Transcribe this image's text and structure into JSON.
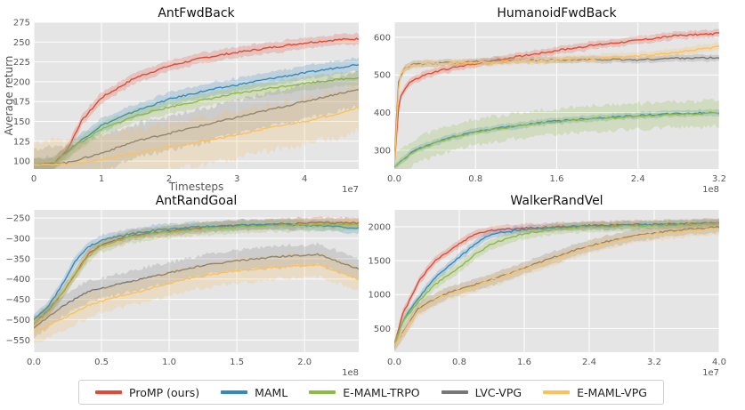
{
  "legend": [
    {
      "name": "ProMP (ours)",
      "color": "#e24a33"
    },
    {
      "name": "MAML",
      "color": "#348abd"
    },
    {
      "name": "E-MAML-TRPO",
      "color": "#8eba42"
    },
    {
      "name": "LVC-VPG",
      "color": "#777777"
    },
    {
      "name": "E-MAML-VPG",
      "color": "#fbc15e"
    }
  ],
  "chart_data": [
    {
      "type": "line",
      "title": "AntFwdBack",
      "xlabel": "Timesteps",
      "ylabel": "Average return",
      "x_multiplier": "1e7",
      "xlim": [
        0,
        4.8
      ],
      "ylim": [
        90,
        275
      ],
      "xticks": [
        0,
        1,
        2,
        3,
        4
      ],
      "xtick_labels": [
        "0",
        "1",
        "2",
        "3",
        "4"
      ],
      "yticks": [
        100,
        125,
        150,
        175,
        200,
        225,
        250,
        275
      ],
      "ytick_labels": [
        "100",
        "125",
        "150",
        "175",
        "200",
        "225",
        "250",
        "275"
      ],
      "series": [
        {
          "name": "ProMP (ours)",
          "color": "#e24a33",
          "x": [
            0,
            0.3,
            0.5,
            0.7,
            1.0,
            1.5,
            2.0,
            2.5,
            3.0,
            3.5,
            4.0,
            4.5,
            4.8
          ],
          "y": [
            95,
            97,
            115,
            150,
            180,
            205,
            220,
            230,
            237,
            243,
            249,
            253,
            254
          ],
          "spread": 8
        },
        {
          "name": "MAML",
          "color": "#348abd",
          "x": [
            0,
            0.3,
            0.6,
            1.0,
            1.5,
            2.0,
            2.5,
            3.0,
            3.5,
            4.0,
            4.5,
            4.8
          ],
          "y": [
            95,
            97,
            120,
            145,
            163,
            178,
            188,
            196,
            204,
            211,
            218,
            222
          ],
          "spread": 10
        },
        {
          "name": "E-MAML-TRPO",
          "color": "#8eba42",
          "x": [
            0,
            0.3,
            0.6,
            1.0,
            1.5,
            2.0,
            2.5,
            3.0,
            3.5,
            4.0,
            4.5,
            4.8
          ],
          "y": [
            95,
            97,
            118,
            140,
            157,
            168,
            177,
            185,
            192,
            198,
            203,
            205
          ],
          "spread": 10
        },
        {
          "name": "LVC-VPG",
          "color": "#777777",
          "x": [
            0,
            0.5,
            1.0,
            1.5,
            2.0,
            2.5,
            3.0,
            3.5,
            4.0,
            4.5,
            4.8
          ],
          "y": [
            95,
            98,
            110,
            125,
            135,
            145,
            155,
            165,
            175,
            185,
            190
          ],
          "spread": 25
        },
        {
          "name": "E-MAML-VPG",
          "color": "#fbc15e",
          "x": [
            0,
            0.5,
            1.0,
            1.5,
            2.0,
            2.5,
            3.0,
            3.5,
            4.0,
            4.5,
            4.8
          ],
          "y": [
            95,
            96,
            102,
            110,
            118,
            125,
            133,
            142,
            150,
            160,
            168
          ],
          "spread": 35
        }
      ]
    },
    {
      "type": "line",
      "title": "HumanoidFwdBack",
      "xlabel": "",
      "ylabel": "",
      "x_multiplier": "1e8",
      "xlim": [
        0,
        3.2
      ],
      "ylim": [
        250,
        640
      ],
      "xticks": [
        0,
        0.8,
        1.6,
        2.4,
        3.2
      ],
      "xtick_labels": [
        "0.0",
        "0.8",
        "1.6",
        "2.4",
        "3.2"
      ],
      "yticks": [
        300,
        400,
        500,
        600
      ],
      "ytick_labels": [
        "300",
        "400",
        "500",
        "600"
      ],
      "series": [
        {
          "name": "ProMP (ours)",
          "color": "#e24a33",
          "x": [
            0,
            0.05,
            0.15,
            0.3,
            0.5,
            0.8,
            1.2,
            1.6,
            2.0,
            2.4,
            2.8,
            3.2
          ],
          "y": [
            260,
            440,
            480,
            500,
            515,
            530,
            548,
            565,
            580,
            592,
            605,
            610
          ],
          "spread": 12
        },
        {
          "name": "MAML",
          "color": "#348abd",
          "x": [
            0,
            0.2,
            0.5,
            0.8,
            1.2,
            1.6,
            2.0,
            2.4,
            2.8,
            3.2
          ],
          "y": [
            255,
            300,
            330,
            350,
            365,
            378,
            386,
            392,
            397,
            400
          ],
          "spread": 10
        },
        {
          "name": "E-MAML-TRPO",
          "color": "#8eba42",
          "x": [
            0,
            0.2,
            0.5,
            0.8,
            1.2,
            1.6,
            2.0,
            2.4,
            2.8,
            3.2
          ],
          "y": [
            255,
            298,
            328,
            348,
            364,
            376,
            384,
            390,
            395,
            398
          ],
          "spread": 40
        },
        {
          "name": "LVC-VPG",
          "color": "#777777",
          "x": [
            0,
            0.04,
            0.1,
            0.2,
            0.5,
            0.8,
            1.2,
            1.6,
            2.0,
            2.4,
            2.8,
            3.2
          ],
          "y": [
            270,
            480,
            520,
            528,
            532,
            535,
            538,
            540,
            541,
            540,
            545,
            545
          ],
          "spread": 10
        },
        {
          "name": "E-MAML-VPG",
          "color": "#fbc15e",
          "x": [
            0,
            0.05,
            0.15,
            0.3,
            0.6,
            1.0,
            1.6,
            2.0,
            2.4,
            2.8,
            3.2
          ],
          "y": [
            260,
            500,
            525,
            530,
            532,
            535,
            540,
            545,
            550,
            560,
            575
          ],
          "spread": 12
        }
      ]
    },
    {
      "type": "line",
      "title": "AntRandGoal",
      "xlabel": "",
      "ylabel": "",
      "x_multiplier": "1e8",
      "xlim": [
        0,
        2.4
      ],
      "ylim": [
        -580,
        -230
      ],
      "xticks": [
        0,
        0.5,
        1.0,
        1.5,
        2.0
      ],
      "xtick_labels": [
        "0.0",
        "0.5",
        "1.0",
        "1.5",
        "2.0"
      ],
      "yticks": [
        -550,
        -500,
        -450,
        -400,
        -350,
        -300,
        -250
      ],
      "ytick_labels": [
        "−550",
        "−500",
        "−450",
        "−400",
        "−350",
        "−300",
        "−250"
      ],
      "series": [
        {
          "name": "ProMP (ours)",
          "color": "#e24a33",
          "x": [
            0,
            0.1,
            0.2,
            0.3,
            0.4,
            0.5,
            0.7,
            0.9,
            1.2,
            1.5,
            1.8,
            2.1,
            2.4
          ],
          "y": [
            -510,
            -480,
            -440,
            -390,
            -340,
            -315,
            -295,
            -285,
            -275,
            -268,
            -265,
            -262,
            -262
          ],
          "spread": 15
        },
        {
          "name": "MAML",
          "color": "#348abd",
          "x": [
            0,
            0.1,
            0.2,
            0.3,
            0.4,
            0.5,
            0.7,
            0.9,
            1.2,
            1.5,
            1.8,
            2.1,
            2.4
          ],
          "y": [
            -500,
            -470,
            -420,
            -360,
            -320,
            -305,
            -290,
            -280,
            -272,
            -268,
            -266,
            -268,
            -275
          ],
          "spread": 15
        },
        {
          "name": "E-MAML-TRPO",
          "color": "#8eba42",
          "x": [
            0,
            0.1,
            0.2,
            0.3,
            0.4,
            0.5,
            0.7,
            0.9,
            1.2,
            1.5,
            1.8,
            2.1,
            2.4
          ],
          "y": [
            -510,
            -480,
            -440,
            -390,
            -345,
            -318,
            -298,
            -288,
            -278,
            -272,
            -268,
            -266,
            -266
          ],
          "spread": 18
        },
        {
          "name": "LVC-VPG",
          "color": "#777777",
          "x": [
            0,
            0.2,
            0.4,
            0.6,
            0.8,
            1.0,
            1.2,
            1.5,
            1.8,
            2.1,
            2.4
          ],
          "y": [
            -520,
            -470,
            -430,
            -415,
            -400,
            -385,
            -370,
            -355,
            -345,
            -340,
            -375
          ],
          "spread": 30
        },
        {
          "name": "E-MAML-VPG",
          "color": "#fbc15e",
          "x": [
            0,
            0.2,
            0.4,
            0.6,
            0.8,
            1.0,
            1.2,
            1.5,
            1.8,
            2.1,
            2.4
          ],
          "y": [
            -530,
            -500,
            -465,
            -445,
            -430,
            -410,
            -395,
            -380,
            -370,
            -365,
            -400
          ],
          "spread": 35
        }
      ]
    },
    {
      "type": "line",
      "title": "WalkerRandVel",
      "xlabel": "",
      "ylabel": "",
      "x_multiplier": "1e7",
      "xlim": [
        0,
        4.0
      ],
      "ylim": [
        150,
        2250
      ],
      "xticks": [
        0,
        0.8,
        1.6,
        2.4,
        3.2,
        4.0
      ],
      "xtick_labels": [
        "0.0",
        "0.8",
        "1.6",
        "2.4",
        "3.2",
        "4.0"
      ],
      "yticks": [
        500,
        1000,
        1500,
        2000
      ],
      "ytick_labels": [
        "500",
        "1000",
        "1500",
        "2000"
      ],
      "series": [
        {
          "name": "ProMP (ours)",
          "color": "#e24a33",
          "x": [
            0,
            0.1,
            0.3,
            0.5,
            0.8,
            1.0,
            1.2,
            1.6,
            2.0,
            2.4,
            2.8,
            3.2,
            3.6,
            4.0
          ],
          "y": [
            250,
            700,
            1200,
            1500,
            1750,
            1900,
            1950,
            1980,
            2000,
            2020,
            2030,
            2040,
            2050,
            2060
          ],
          "spread": 70
        },
        {
          "name": "MAML",
          "color": "#348abd",
          "x": [
            0,
            0.1,
            0.3,
            0.5,
            0.8,
            1.0,
            1.2,
            1.6,
            2.0,
            2.4,
            2.8,
            3.2,
            3.6,
            4.0
          ],
          "y": [
            250,
            600,
            950,
            1250,
            1550,
            1750,
            1900,
            1960,
            1990,
            2010,
            2020,
            2030,
            2040,
            2050
          ],
          "spread": 70
        },
        {
          "name": "E-MAML-TRPO",
          "color": "#8eba42",
          "x": [
            0,
            0.1,
            0.3,
            0.5,
            0.8,
            1.0,
            1.2,
            1.6,
            2.0,
            2.4,
            2.8,
            3.2,
            3.6,
            4.0
          ],
          "y": [
            250,
            600,
            900,
            1150,
            1400,
            1600,
            1750,
            1900,
            1970,
            2000,
            2010,
            2020,
            2030,
            2040
          ],
          "spread": 90
        },
        {
          "name": "LVC-VPG",
          "color": "#777777",
          "x": [
            0,
            0.3,
            0.6,
            1.0,
            1.4,
            1.8,
            2.2,
            2.6,
            3.0,
            3.4,
            3.8,
            4.0
          ],
          "y": [
            250,
            800,
            1000,
            1150,
            1300,
            1480,
            1650,
            1780,
            1880,
            1940,
            1980,
            2000
          ],
          "spread": 100
        },
        {
          "name": "E-MAML-VPG",
          "color": "#fbc15e",
          "x": [
            0,
            0.3,
            0.6,
            1.0,
            1.4,
            1.8,
            2.2,
            2.6,
            3.0,
            3.4,
            3.8,
            4.0
          ],
          "y": [
            250,
            780,
            980,
            1130,
            1290,
            1460,
            1630,
            1760,
            1860,
            1920,
            1960,
            1980
          ],
          "spread": 110
        }
      ]
    }
  ]
}
